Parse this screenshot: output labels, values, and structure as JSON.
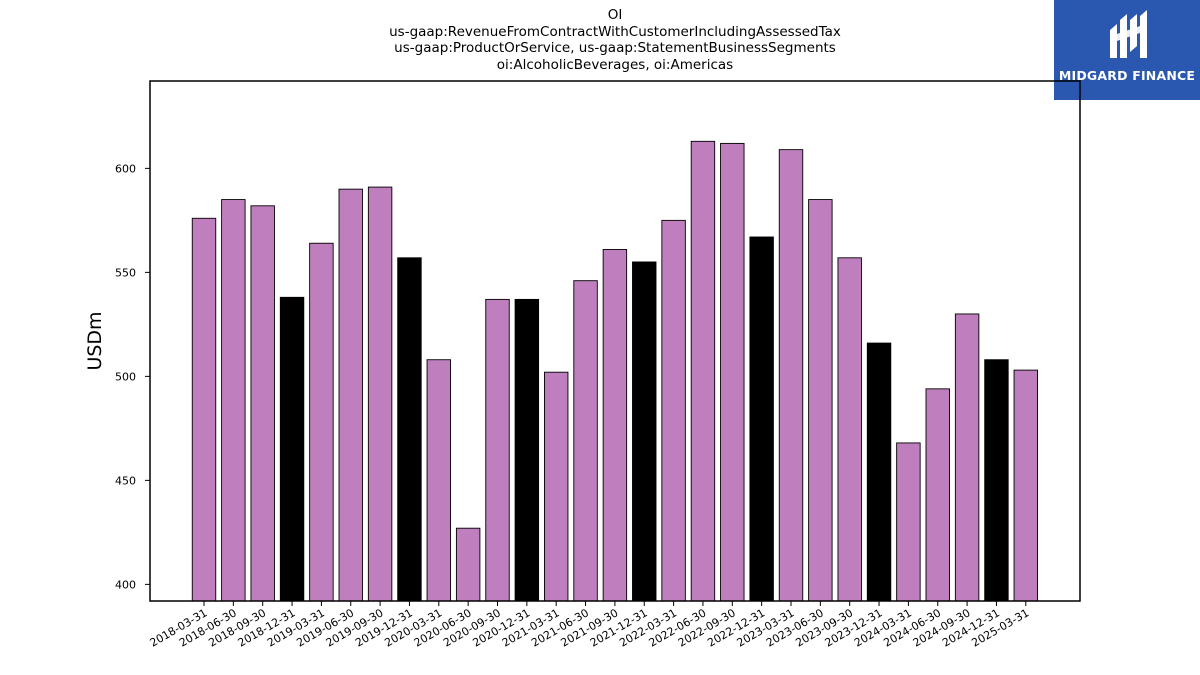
{
  "chart_data": {
    "type": "bar",
    "title_lines": [
      "OI",
      "us-gaap:RevenueFromContractWithCustomerIncludingAssessedTax",
      "us-gaap:ProductOrService, us-gaap:StatementBusinessSegments",
      "oi:AlcoholicBeverages, oi:Americas"
    ],
    "xlabel": "",
    "ylabel": "USDm",
    "ylim": [
      392,
      642
    ],
    "yticks": [
      400,
      450,
      500,
      550,
      600
    ],
    "grid": false,
    "categories": [
      "2018-03-31",
      "2018-06-30",
      "2018-09-30",
      "2018-12-31",
      "2019-03-31",
      "2019-06-30",
      "2019-09-30",
      "2019-12-31",
      "2020-03-31",
      "2020-06-30",
      "2020-09-30",
      "2020-12-31",
      "2021-03-31",
      "2021-06-30",
      "2021-09-30",
      "2021-12-31",
      "2022-03-31",
      "2022-06-30",
      "2022-09-30",
      "2022-12-31",
      "2023-03-31",
      "2023-06-30",
      "2023-09-30",
      "2023-12-31",
      "2024-03-31",
      "2024-06-30",
      "2024-09-30",
      "2024-12-31",
      "2025-03-31"
    ],
    "values": [
      576,
      585,
      582,
      538,
      564,
      590,
      591,
      557,
      508,
      427,
      537,
      537,
      502,
      546,
      561,
      555,
      575,
      613,
      612,
      567,
      609,
      585,
      557,
      516,
      468,
      494,
      530,
      508,
      503
    ],
    "colors": {
      "quarter": "#bf7fbf",
      "year_end": "#000000",
      "edge": "#000000"
    }
  },
  "logo": {
    "text": "MIDGARD FINANCE",
    "background": "#2a57b0"
  }
}
